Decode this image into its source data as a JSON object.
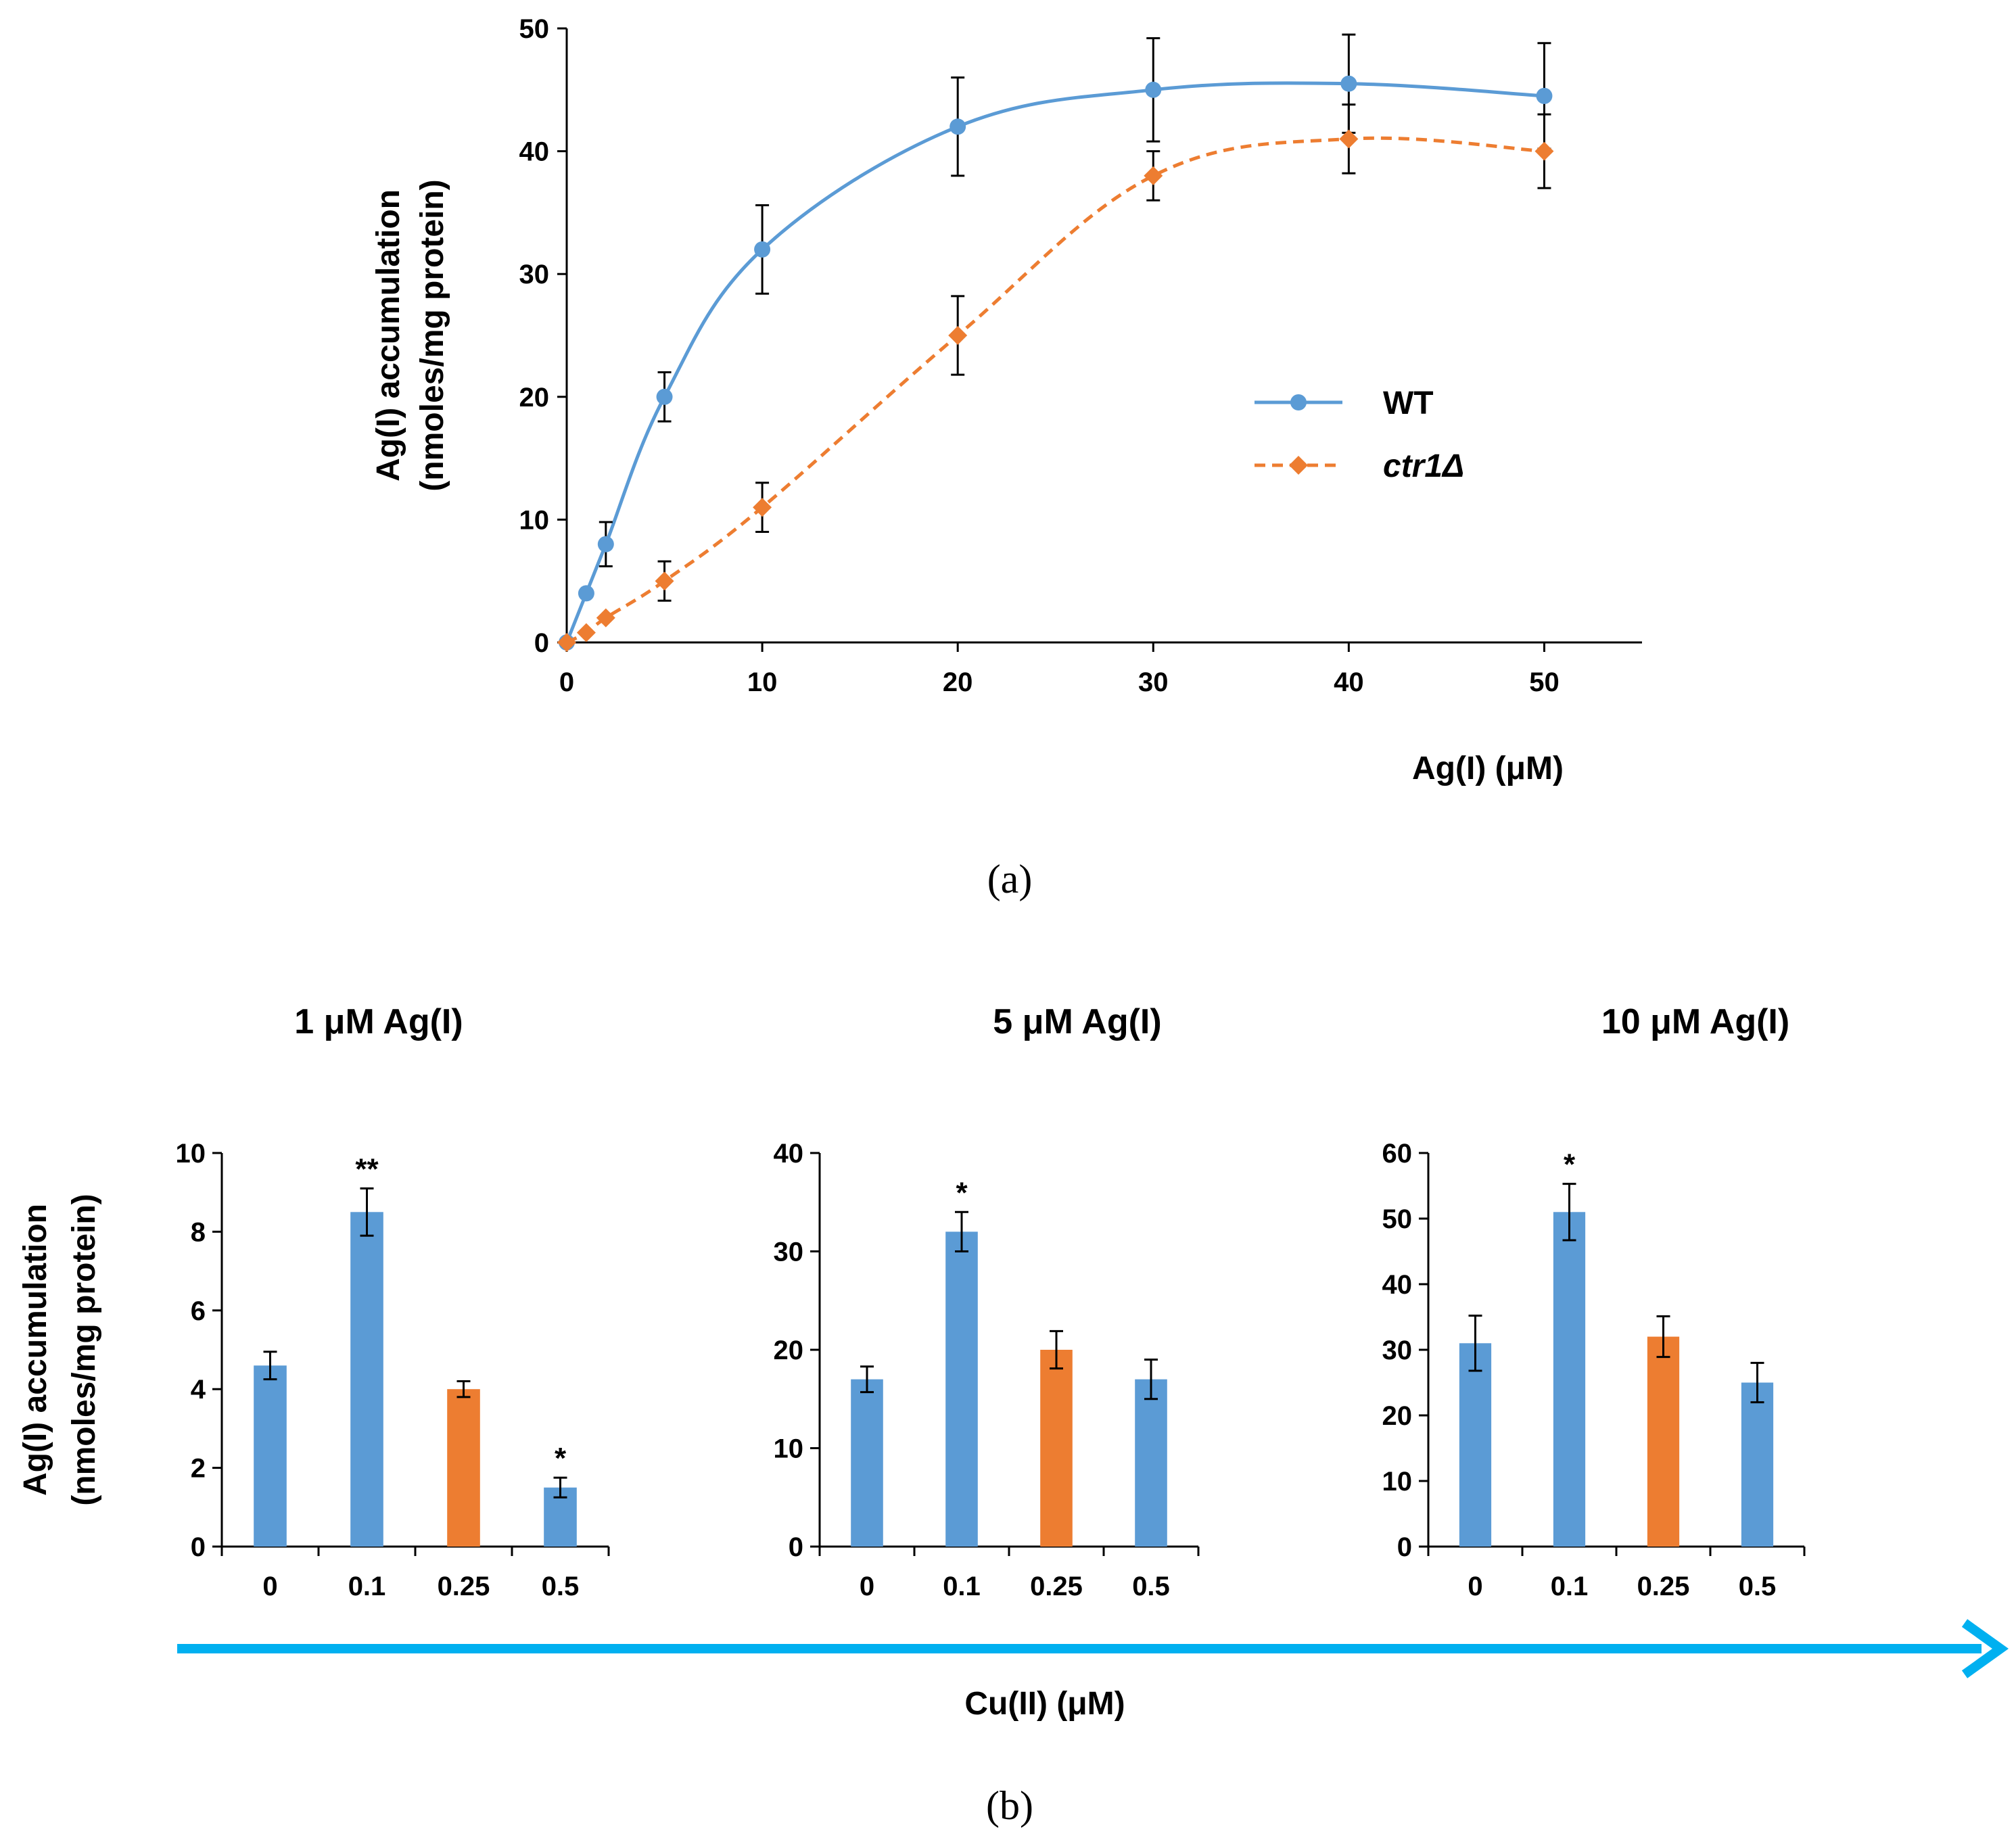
{
  "colors": {
    "wt": "#5B9BD5",
    "mutant": "#ED7D31",
    "arrow": "#00B0F0",
    "axis": "#000000"
  },
  "captions": {
    "a": "(a)",
    "b": "(b)"
  },
  "chart_data": [
    {
      "id": "a",
      "type": "line",
      "title": "",
      "xlabel": "Ag(I) (μM)",
      "ylabel_line1": "Ag(I) accumulation",
      "ylabel_line2": "(nmoles/mg protein)",
      "xlim": [
        0,
        55
      ],
      "ylim": [
        0,
        50
      ],
      "x_ticks": [
        0,
        10,
        20,
        30,
        40,
        50
      ],
      "y_ticks": [
        0,
        10,
        20,
        30,
        40,
        50
      ],
      "legend_position": "right",
      "series": [
        {
          "name": "WT",
          "style": "solid",
          "marker": "circle",
          "x": [
            0,
            1,
            2,
            5,
            10,
            20,
            30,
            40,
            50
          ],
          "y": [
            0,
            4,
            8,
            20,
            32,
            42,
            45,
            45.5,
            44.5
          ],
          "err": [
            0,
            0,
            1.8,
            2,
            3.6,
            4,
            4.2,
            4,
            4.3
          ]
        },
        {
          "name": "ctr1Δ",
          "style": "dashed",
          "marker": "diamond",
          "x": [
            0,
            1,
            2,
            5,
            10,
            20,
            30,
            40,
            50
          ],
          "y": [
            0,
            0.8,
            2,
            5,
            11,
            25,
            38,
            41,
            40
          ],
          "err": [
            0,
            0,
            0,
            1.6,
            2,
            3.2,
            2,
            2.8,
            3
          ]
        }
      ]
    },
    {
      "id": "b1",
      "type": "bar",
      "title": "1 μM Ag(I)",
      "ylabel_line1": "Ag(I) accumulation",
      "ylabel_line2": "(nmoles/mg protein)",
      "categories": [
        "0",
        "0.1",
        "0.25",
        "0.5"
      ],
      "values": [
        4.6,
        8.5,
        4.0,
        1.5
      ],
      "errors": [
        0.35,
        0.6,
        0.2,
        0.25
      ],
      "bar_colors": [
        "wt",
        "wt",
        "mutant",
        "wt"
      ],
      "significance": [
        "",
        "**",
        "",
        "*"
      ],
      "ylim": [
        0,
        10
      ],
      "y_ticks": [
        0,
        2,
        4,
        6,
        8,
        10
      ]
    },
    {
      "id": "b2",
      "type": "bar",
      "title": "5 μM Ag(I)",
      "categories": [
        "0",
        "0.1",
        "0.25",
        "0.5"
      ],
      "values": [
        17,
        32,
        20,
        17
      ],
      "errors": [
        1.3,
        2.0,
        1.9,
        2.0
      ],
      "bar_colors": [
        "wt",
        "wt",
        "mutant",
        "wt"
      ],
      "significance": [
        "",
        "*",
        "",
        ""
      ],
      "ylim": [
        0,
        40
      ],
      "y_ticks": [
        0,
        10,
        20,
        30,
        40
      ]
    },
    {
      "id": "b3",
      "type": "bar",
      "title": "10 μM Ag(I)",
      "categories": [
        "0",
        "0.1",
        "0.25",
        "0.5"
      ],
      "values": [
        31,
        51,
        32,
        25
      ],
      "errors": [
        4.2,
        4.3,
        3.1,
        3.0
      ],
      "bar_colors": [
        "wt",
        "wt",
        "mutant",
        "wt"
      ],
      "significance": [
        "",
        "*",
        "",
        ""
      ],
      "ylim": [
        0,
        60
      ],
      "y_ticks": [
        0,
        10,
        20,
        30,
        40,
        50,
        60
      ]
    }
  ],
  "shared_xlabel_b": "Cu(II) (μM)"
}
